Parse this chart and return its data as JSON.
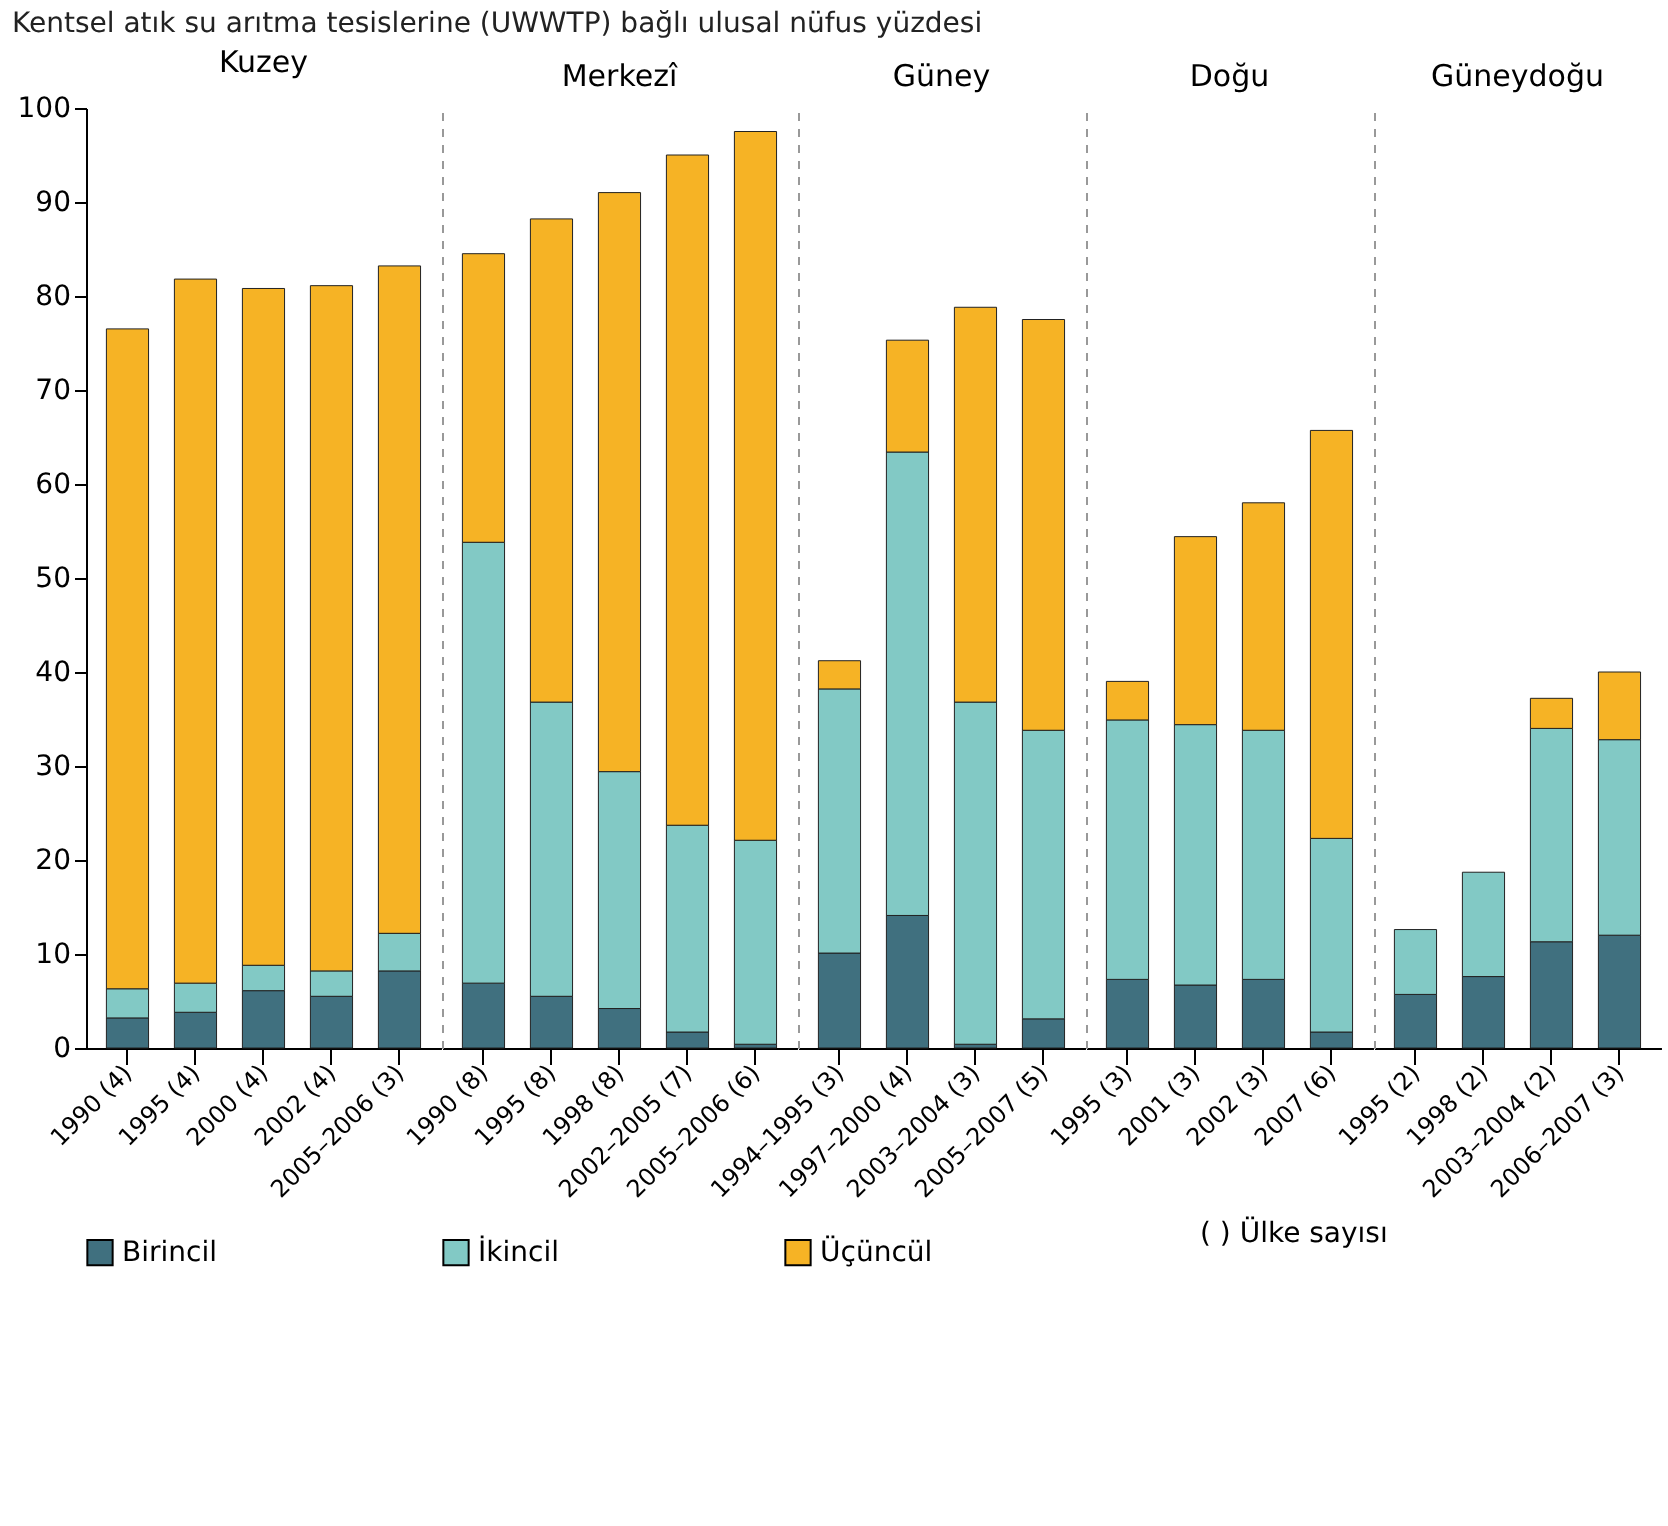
{
  "chart_data": [
    {
      "type": "bar",
      "stacked": true,
      "title": "Kuzey",
      "categories": [
        "1990 (4)",
        "1995 (4)",
        "2000 (4)",
        "2002 (4)",
        "2005–2006 (3)"
      ],
      "ylim": [
        0,
        100
      ],
      "yticks": [
        0,
        10,
        20,
        30,
        40,
        50,
        60,
        70,
        80,
        90,
        100
      ],
      "grid": false,
      "legend": "bottom",
      "annotations": [
        "Kentsel atık su arıtma tesislerine (UWWTP) bağlı ulusal nüfus yüzdesi",
        "( ) Ülke sayısı"
      ],
      "series": [
        {
          "name": "Birincil",
          "color": "#40707f",
          "values": [
            3.2,
            3.8,
            6.1,
            5.5,
            8.2
          ]
        },
        {
          "name": "İkincil",
          "color": "#82c9c5",
          "values": [
            3.1,
            3.1,
            2.7,
            2.7,
            4.0
          ]
        },
        {
          "name": "Üçüncül",
          "color": "#f6b325",
          "values": [
            70.2,
            74.9,
            72.0,
            72.9,
            71.0
          ]
        }
      ]
    },
    {
      "type": "bar",
      "stacked": true,
      "title": "Merkezî",
      "categories": [
        "1990 (8)",
        "1995 (8)",
        "1998 (8)",
        "2002–2005 (7)",
        "2005–2006 (6)"
      ],
      "ylim": [
        0,
        100
      ],
      "tick_labels": "x",
      "grid": false,
      "legend": "bottom",
      "series": [
        {
          "name": "Birincil",
          "color": "#40707f",
          "values": [
            6.9,
            5.5,
            4.2,
            1.7,
            0.4
          ]
        },
        {
          "name": "İkincil",
          "color": "#82c9c5",
          "values": [
            46.9,
            31.3,
            25.2,
            22.0,
            21.7
          ]
        },
        {
          "name": "Üçüncül",
          "color": "#f6b325",
          "values": [
            30.7,
            51.4,
            61.6,
            71.3,
            75.4
          ]
        }
      ]
    },
    {
      "type": "bar",
      "stacked": true,
      "title": "Güney",
      "categories": [
        "1994–1995 (3)",
        "1997–2000 (4)",
        "2003–2004 (3)",
        "2005–2007 (5)"
      ],
      "ylim": [
        0,
        100
      ],
      "tick_labels": "x",
      "grid": false,
      "legend": "bottom",
      "series": [
        {
          "name": "Birincil",
          "color": "#40707f",
          "values": [
            10.1,
            14.1,
            0.4,
            3.1
          ]
        },
        {
          "name": "İkincil",
          "color": "#82c9c5",
          "values": [
            28.1,
            49.3,
            36.4,
            30.7
          ]
        },
        {
          "name": "Üçüncül",
          "color": "#f6b325",
          "values": [
            3.0,
            11.9,
            42.0,
            43.7
          ]
        }
      ]
    },
    {
      "type": "bar",
      "stacked": true,
      "title": "Doğu",
      "categories": [
        "1995 (3)",
        "2001 (3)",
        "2002 (3)",
        "2007 (6)"
      ],
      "ylim": [
        0,
        100
      ],
      "tick_labels": "x",
      "grid": false,
      "legend": "bottom",
      "series": [
        {
          "name": "Birincil",
          "color": "#40707f",
          "values": [
            7.3,
            6.7,
            7.3,
            1.7
          ]
        },
        {
          "name": "İkincil",
          "color": "#82c9c5",
          "values": [
            27.6,
            27.7,
            26.5,
            20.6
          ]
        },
        {
          "name": "Üçüncül",
          "color": "#f6b325",
          "values": [
            4.1,
            20.0,
            24.2,
            43.4
          ]
        }
      ]
    },
    {
      "type": "bar",
      "stacked": true,
      "title": "Güneydoğu",
      "categories": [
        "1995 (2)",
        "1998 (2)",
        "2003–2004 (2)",
        "2006–2007 (3)"
      ],
      "ylim": [
        0,
        100
      ],
      "tick_labels": "x",
      "grid": false,
      "legend": "bottom",
      "series": [
        {
          "name": "Birincil",
          "color": "#40707f",
          "values": [
            5.7,
            7.6,
            11.3,
            12.0
          ]
        },
        {
          "name": "İkincil",
          "color": "#82c9c5",
          "values": [
            6.9,
            11.1,
            22.7,
            20.8
          ]
        },
        {
          "name": "Üçüncül",
          "color": "#f6b325",
          "values": [
            null,
            null,
            3.2,
            7.2
          ]
        }
      ]
    }
  ]
}
